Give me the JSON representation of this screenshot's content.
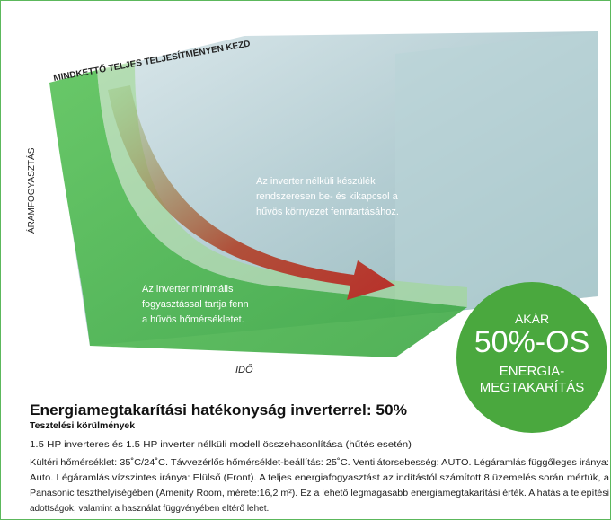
{
  "diagram": {
    "top_label": "MINDKETTŐ TELJES TELJESÍTMÉNYEN KEZD",
    "y_label": "ÁRAMFOGYASZTÁS",
    "x_label": "IDŐ",
    "note_non_inverter": [
      "Az inverter nélküli készülék",
      "rendszeresen be- és kikapcsol a",
      "hűvös környezet fenntartásához."
    ],
    "note_inverter": [
      "Az inverter minimális",
      "fogyasztással tartja fenn",
      "a hűvös hőmérsékletet."
    ],
    "badge": [
      "AKÁR",
      "50%-OS",
      "ENERGIA-",
      "MEGTAKARÍTÁS"
    ]
  },
  "text": {
    "title": "Energiamegtakarítási hatékonyság inverterrel: 50%",
    "subtitle": "Tesztelési körülmények",
    "intro": "1.5 HP inverteres és 1.5 HP inverter nélküli modell összehasonlítása (hűtés esetén)",
    "details": [
      "Kültéri hőmérséklet: 35˚C/24˚C. Távvezérlős hőmérséklet-beállítás: 25˚C. Ventilátorsebesség: AUTO. Légáramlás függőleges iránya:",
      "Auto. Légáramlás vízszintes iránya: Elülső (Front). A teljes energiafogyasztást az indítástól számított 8 üzemelés során mértük, a",
      "Panasonic teszthelyiségében (Amenity Room, mérete:16,2 m²). Ez a lehető legmagasabb energiamegtakarítási érték. A hatás a telepítési",
      "adottságok, valamint a használat függvényében eltérő lehet."
    ]
  }
}
